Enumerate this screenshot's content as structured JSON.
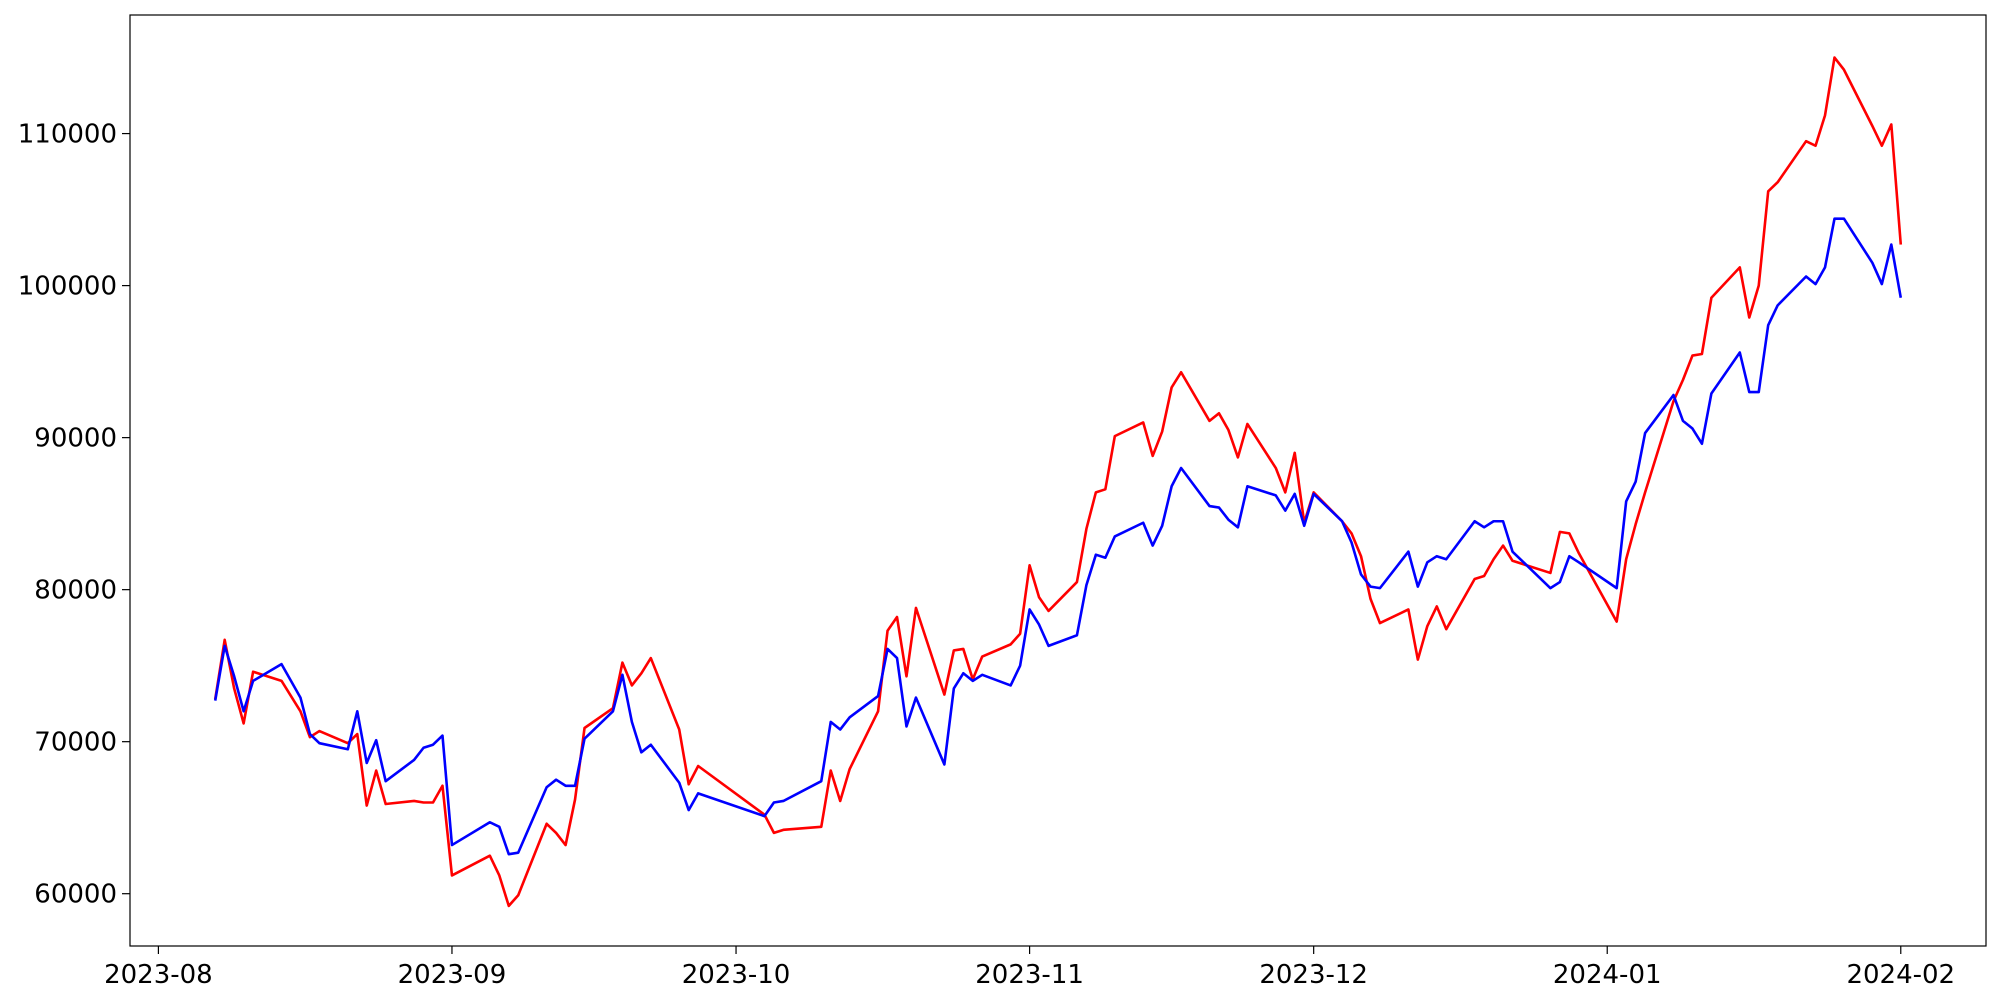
{
  "chart_data": {
    "type": "line",
    "x": [
      "2023-08-07",
      "2023-08-08",
      "2023-08-09",
      "2023-08-10",
      "2023-08-11",
      "2023-08-14",
      "2023-08-15",
      "2023-08-16",
      "2023-08-17",
      "2023-08-18",
      "2023-08-21",
      "2023-08-22",
      "2023-08-23",
      "2023-08-24",
      "2023-08-25",
      "2023-08-28",
      "2023-08-29",
      "2023-08-30",
      "2023-08-31",
      "2023-09-01",
      "2023-09-05",
      "2023-09-06",
      "2023-09-07",
      "2023-09-08",
      "2023-09-11",
      "2023-09-12",
      "2023-09-13",
      "2023-09-14",
      "2023-09-15",
      "2023-09-18",
      "2023-09-19",
      "2023-09-20",
      "2023-09-21",
      "2023-09-22",
      "2023-09-25",
      "2023-09-26",
      "2023-09-27",
      "2023-10-04",
      "2023-10-05",
      "2023-10-06",
      "2023-10-10",
      "2023-10-11",
      "2023-10-12",
      "2023-10-13",
      "2023-10-16",
      "2023-10-17",
      "2023-10-18",
      "2023-10-19",
      "2023-10-20",
      "2023-10-23",
      "2023-10-24",
      "2023-10-25",
      "2023-10-26",
      "2023-10-27",
      "2023-10-30",
      "2023-10-31",
      "2023-11-01",
      "2023-11-02",
      "2023-11-03",
      "2023-11-06",
      "2023-11-07",
      "2023-11-08",
      "2023-11-09",
      "2023-11-10",
      "2023-11-13",
      "2023-11-14",
      "2023-11-15",
      "2023-11-16",
      "2023-11-17",
      "2023-11-20",
      "2023-11-21",
      "2023-11-22",
      "2023-11-23",
      "2023-11-24",
      "2023-11-27",
      "2023-11-28",
      "2023-11-29",
      "2023-11-30",
      "2023-12-01",
      "2023-12-04",
      "2023-12-05",
      "2023-12-06",
      "2023-12-07",
      "2023-12-08",
      "2023-12-11",
      "2023-12-12",
      "2023-12-13",
      "2023-12-14",
      "2023-12-15",
      "2023-12-18",
      "2023-12-19",
      "2023-12-20",
      "2023-12-21",
      "2023-12-22",
      "2023-12-26",
      "2023-12-27",
      "2023-12-28",
      "2023-12-29",
      "2024-01-02",
      "2024-01-03",
      "2024-01-04",
      "2024-01-05",
      "2024-01-08",
      "2024-01-09",
      "2024-01-10",
      "2024-01-11",
      "2024-01-12",
      "2024-01-15",
      "2024-01-16",
      "2024-01-17",
      "2024-01-18",
      "2024-01-19",
      "2024-01-22",
      "2024-01-23",
      "2024-01-24",
      "2024-01-25",
      "2024-01-26",
      "2024-01-29",
      "2024-01-30",
      "2024-01-31",
      "2024-02-01"
    ],
    "series": [
      {
        "color": "#ff0000",
        "values": [
          72800,
          76700,
          73500,
          71200,
          74600,
          74000,
          73000,
          72000,
          70300,
          70700,
          69900,
          70500,
          65800,
          68100,
          65900,
          66100,
          66000,
          66000,
          67100,
          61200,
          62500,
          61200,
          59200,
          59900,
          64600,
          64000,
          63200,
          66200,
          70900,
          72200,
          75200,
          73700,
          74500,
          75500,
          70800,
          67200,
          68400,
          65200,
          64000,
          64200,
          64400,
          68100,
          66100,
          68200,
          72000,
          77300,
          78200,
          74300,
          78800,
          73100,
          76000,
          76100,
          74100,
          75600,
          76400,
          77100,
          81600,
          79500,
          78600,
          80500,
          84000,
          86400,
          86600,
          90100,
          91000,
          88800,
          90400,
          93300,
          94300,
          91100,
          91600,
          90500,
          88700,
          90900,
          88000,
          86400,
          89000,
          84400,
          86400,
          84500,
          83700,
          82200,
          79400,
          77800,
          78700,
          75400,
          77600,
          78900,
          77400,
          80700,
          80900,
          82000,
          82900,
          81900,
          81100,
          83800,
          83700,
          82400,
          77900,
          82000,
          84300,
          86400,
          92400,
          93800,
          95400,
          95500,
          99200,
          101200,
          97900,
          100000,
          106200,
          106800,
          109500,
          109200,
          111200,
          115000,
          114200,
          110500,
          109200,
          110600,
          102700
        ]
      },
      {
        "color": "#0000ff",
        "values": [
          72700,
          76300,
          74300,
          72000,
          74000,
          75100,
          74000,
          72900,
          70500,
          69900,
          69500,
          72000,
          68600,
          70100,
          67400,
          68800,
          69600,
          69800,
          70400,
          63200,
          64700,
          64400,
          62600,
          62700,
          67000,
          67500,
          67100,
          67100,
          70200,
          72000,
          74400,
          71300,
          69300,
          69800,
          67300,
          65500,
          66600,
          65100,
          66000,
          66100,
          67400,
          71300,
          70800,
          71600,
          73000,
          76100,
          75500,
          71000,
          72900,
          68500,
          73500,
          74500,
          74000,
          74400,
          73700,
          75000,
          78700,
          77700,
          76300,
          77000,
          80300,
          82300,
          82100,
          83500,
          84400,
          82900,
          84200,
          86800,
          88000,
          85500,
          85400,
          84600,
          84100,
          86800,
          86200,
          85200,
          86300,
          84200,
          86300,
          84500,
          83100,
          81000,
          80200,
          80100,
          82500,
          80200,
          81800,
          82200,
          82000,
          84500,
          84100,
          84500,
          84500,
          82500,
          80100,
          80500,
          82200,
          81800,
          80100,
          85800,
          87100,
          90300,
          92800,
          91100,
          90600,
          89600,
          92900,
          95600,
          93000,
          93000,
          97400,
          98700,
          100600,
          100100,
          101200,
          104400,
          104400,
          101500,
          100100,
          102700,
          99200
        ]
      }
    ],
    "xlim": [
      "2023-07-29",
      "2024-02-10"
    ],
    "xticks": [
      {
        "value": "2023-08-01",
        "label": "2023-08"
      },
      {
        "value": "2023-09-01",
        "label": "2023-09"
      },
      {
        "value": "2023-10-01",
        "label": "2023-10"
      },
      {
        "value": "2023-11-01",
        "label": "2023-11"
      },
      {
        "value": "2023-12-01",
        "label": "2023-12"
      },
      {
        "value": "2024-01-01",
        "label": "2024-01"
      },
      {
        "value": "2024-02-01",
        "label": "2024-02"
      }
    ],
    "ylim": [
      56560,
      117800
    ],
    "yticks": [
      60000,
      70000,
      80000,
      90000,
      100000,
      110000
    ],
    "grid": false
  }
}
